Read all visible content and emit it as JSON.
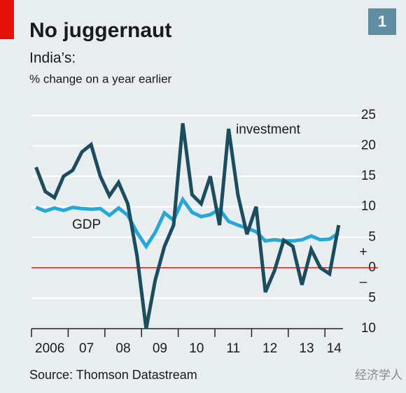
{
  "chart_data": {
    "type": "line",
    "title": "No juggernaut",
    "badge": "1",
    "subtitle": "India’s:",
    "y_label": "% change on a year earlier",
    "source": "Source: Thomson Datastream",
    "watermark": "经济学人",
    "sign_plus": "+",
    "sign_minus": "–",
    "categories": [
      "2006",
      null,
      null,
      null,
      "07",
      null,
      null,
      null,
      "08",
      null,
      null,
      null,
      "09",
      null,
      null,
      null,
      "10",
      null,
      null,
      null,
      "11",
      null,
      null,
      null,
      "12",
      null,
      null,
      null,
      "13",
      null,
      null,
      null,
      "14",
      null
    ],
    "series": [
      {
        "name": "investment",
        "color": "#1b4d5f",
        "values": [
          16.5,
          12.5,
          11.5,
          15,
          16,
          19,
          20.2,
          15,
          11.8,
          14,
          10.5,
          2,
          -10,
          -2,
          3.5,
          7,
          23.7,
          12,
          10.5,
          15,
          7,
          22.8,
          12,
          5.5,
          10,
          -4,
          -0.5,
          4.5,
          3.5,
          -2.8,
          3,
          0,
          -1,
          7
        ]
      },
      {
        "name": "GDP",
        "color": "#27a7d8",
        "values": [
          9.9,
          9.3,
          9.8,
          9.4,
          9.9,
          9.7,
          9.6,
          9.7,
          8.6,
          9.8,
          8.6,
          5.8,
          3.5,
          5.8,
          9.0,
          7.8,
          11.2,
          9.1,
          8.4,
          8.7,
          9.6,
          7.6,
          7.0,
          6.5,
          5.9,
          4.4,
          4.6,
          4.4,
          4.4,
          4.6,
          5.2,
          4.6,
          4.7,
          5.7
        ]
      }
    ],
    "ylim": [
      -10,
      25
    ],
    "yticks": [
      {
        "value": -10,
        "label": "10"
      },
      {
        "value": -5,
        "label": "5"
      },
      0,
      5,
      10,
      15,
      20,
      25
    ],
    "grid": true,
    "zero_line_color": "#e3120b"
  }
}
